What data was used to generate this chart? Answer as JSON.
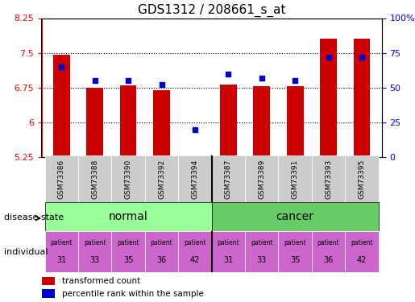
{
  "title": "GDS1312 / 208661_s_at",
  "samples": [
    "GSM73386",
    "GSM73388",
    "GSM73390",
    "GSM73392",
    "GSM73394",
    "GSM73387",
    "GSM73389",
    "GSM73391",
    "GSM73393",
    "GSM73395"
  ],
  "transformed_count": [
    7.45,
    6.75,
    6.8,
    6.7,
    5.27,
    6.82,
    6.78,
    6.78,
    7.8,
    7.8
  ],
  "percentile_rank": [
    65,
    55,
    55,
    52,
    20,
    60,
    57,
    55,
    72,
    72
  ],
  "ylim_left": [
    5.25,
    8.25
  ],
  "ylim_right": [
    0,
    100
  ],
  "yticks_left": [
    5.25,
    6.0,
    6.75,
    7.5,
    8.25
  ],
  "yticks_right": [
    0,
    25,
    50,
    75,
    100
  ],
  "ytick_labels_left": [
    "5.25",
    "6",
    "6.75",
    "7.5",
    "8.25"
  ],
  "ytick_labels_right": [
    "0",
    "25",
    "50",
    "75",
    "100%"
  ],
  "bar_color": "#cc0000",
  "dot_color": "#0000cc",
  "disease_state_normal": [
    "GSM73386",
    "GSM73388",
    "GSM73390",
    "GSM73392",
    "GSM73394"
  ],
  "disease_state_cancer": [
    "GSM73387",
    "GSM73389",
    "GSM73391",
    "GSM73393",
    "GSM73395"
  ],
  "normal_color": "#99ff99",
  "cancer_color": "#66cc66",
  "patient_color": "#cc66cc",
  "patient_numbers": [
    31,
    33,
    35,
    36,
    42,
    31,
    33,
    35,
    36,
    42
  ],
  "xaxis_bg": "#cccccc",
  "grid_color": "#000000",
  "dotted_lines": [
    6.0,
    6.75,
    7.5
  ]
}
